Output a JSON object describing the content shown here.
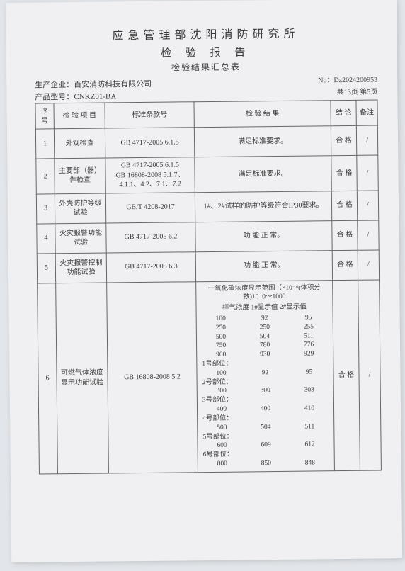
{
  "header": {
    "line1": "应急管理部沈阳消防研究所",
    "line2": "检 验 报 告",
    "line3": "检验结果汇总表"
  },
  "meta": {
    "company_label": "生产企业：",
    "company": "百安消防科技有限公司",
    "model_label": "产品型号：",
    "model": "CNKZ01-BA",
    "doc_no_label": "No：",
    "doc_no": "Dz2024200953",
    "page_info": "共13页   第5页"
  },
  "columns": {
    "idx": "序号",
    "item": "检 验 项 目",
    "std": "标准条款号",
    "result": "检 验 结 果",
    "concl": "结 论",
    "remark": "备注"
  },
  "rows": [
    {
      "idx": "1",
      "item": "外观检查",
      "std": "GB 4717-2005  6.1.5",
      "result": "满足标准要求。",
      "concl": "合 格",
      "remark": "/"
    },
    {
      "idx": "2",
      "item": "主要部（器）件检查",
      "std": "GB 4717-2005  6.1.5\nGB 16808-2008 5.1.7、4.1.1、4.2、7.1、7.2",
      "result": "满足标准要求。",
      "concl": "合 格",
      "remark": "/"
    },
    {
      "idx": "3",
      "item": "外壳防护等级试验",
      "std": "GB/T 4208-2017",
      "result": "1#、2#试样的防护等级符合IP30要求。",
      "concl": "合 格",
      "remark": "/"
    },
    {
      "idx": "4",
      "item": "火灾报警功能试验",
      "std": "GB 4717-2005   6.2",
      "result": "功 能 正 常。",
      "concl": "合 格",
      "remark": "/"
    },
    {
      "idx": "5",
      "item": "火灾报警控制功能试验",
      "std": "GB 4717-2005   6.3",
      "result": "功 能 正 常。",
      "concl": "合 格",
      "remark": "/"
    }
  ],
  "row6": {
    "idx": "6",
    "item": "可燃气体浓度显示功能试验",
    "std": "GB 16808-2008   5.2",
    "concl": "合 格",
    "remark": "/",
    "intro1": "一氧化碳浓度显示范围（×10⁻⁶(体积分数)）：0～1000",
    "intro2": "样气浓度  1#显示值  2#显示值",
    "block1": [
      [
        "100",
        "92",
        "95"
      ],
      [
        "250",
        "250",
        "255"
      ],
      [
        "500",
        "504",
        "511"
      ],
      [
        "750",
        "780",
        "776"
      ],
      [
        "900",
        "930",
        "929"
      ]
    ],
    "subs": [
      {
        "label": "1号部位：",
        "vals": [
          "100",
          "92",
          "95"
        ]
      },
      {
        "label": "2号部位：",
        "vals": [
          "300",
          "300",
          "303"
        ]
      },
      {
        "label": "3号部位：",
        "vals": [
          "400",
          "400",
          "410"
        ]
      },
      {
        "label": "4号部位：",
        "vals": [
          "500",
          "504",
          "511"
        ]
      },
      {
        "label": "5号部位：",
        "vals": [
          "600",
          "609",
          "612"
        ]
      },
      {
        "label": "6号部位：",
        "vals": [
          "800",
          "850",
          "848"
        ]
      }
    ]
  }
}
